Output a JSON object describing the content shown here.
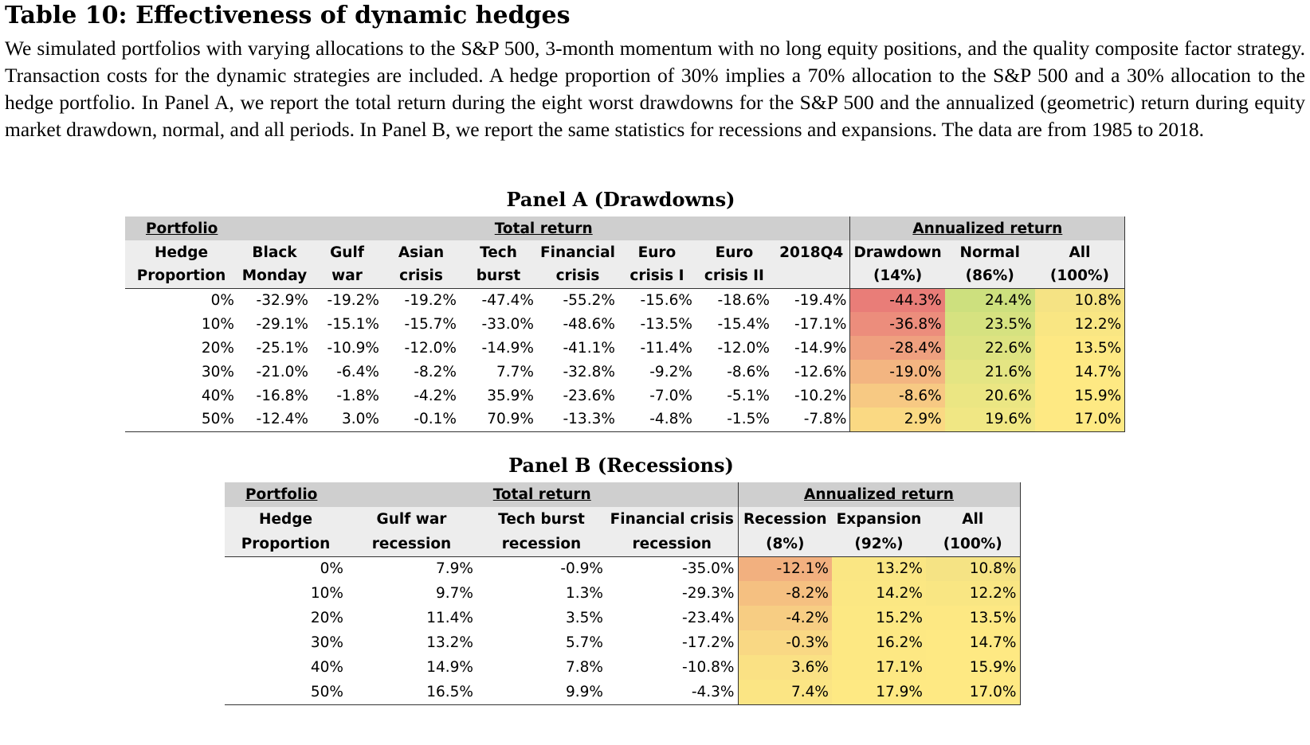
{
  "title": "Table 10: Effectiveness of dynamic hedges",
  "caption": "We simulated portfolios with varying allocations to the S&P 500, 3-month momentum with no long equity positions, and the quality composite factor strategy. Transaction costs for the dynamic strategies are included. A hedge proportion of 30% implies a 70% allocation to the S&P 500 and a 30% allocation to the hedge portfolio. In Panel A, we report the total return during the eight worst drawdowns for the S&P 500 and the annualized (geometric) return during equity market drawdown, normal, and all periods. In Panel B, we report the same statistics for recessions and expansions. The data are from 1985 to 2018.",
  "panel_a": {
    "title": "Panel A (Drawdowns)",
    "group_portfolio": "Portfolio",
    "group_total": "Total return",
    "group_annual": "Annualized return",
    "columns": [
      [
        "Hedge",
        "Proportion"
      ],
      [
        "Black",
        "Monday"
      ],
      [
        "Gulf",
        "war"
      ],
      [
        "Asian",
        "crisis"
      ],
      [
        "Tech",
        "burst"
      ],
      [
        "Financial",
        "crisis"
      ],
      [
        "Euro",
        "crisis I"
      ],
      [
        "Euro",
        "crisis II"
      ],
      [
        "2018Q4",
        ""
      ],
      [
        "Drawdown",
        "(14%)"
      ],
      [
        "Normal",
        "(86%)"
      ],
      [
        "All",
        "(100%)"
      ]
    ],
    "rows": [
      [
        "0%",
        "-32.9%",
        "-19.2%",
        "-19.2%",
        "-47.4%",
        "-55.2%",
        "-15.6%",
        "-18.6%",
        "-19.4%",
        "-44.3%",
        "24.4%",
        "10.8%"
      ],
      [
        "10%",
        "-29.1%",
        "-15.1%",
        "-15.7%",
        "-33.0%",
        "-48.6%",
        "-13.5%",
        "-15.4%",
        "-17.1%",
        "-36.8%",
        "23.5%",
        "12.2%"
      ],
      [
        "20%",
        "-25.1%",
        "-10.9%",
        "-12.0%",
        "-14.9%",
        "-41.1%",
        "-11.4%",
        "-12.0%",
        "-14.9%",
        "-28.4%",
        "22.6%",
        "13.5%"
      ],
      [
        "30%",
        "-21.0%",
        "-6.4%",
        "-8.2%",
        "7.7%",
        "-32.8%",
        "-9.2%",
        "-8.6%",
        "-12.6%",
        "-19.0%",
        "21.6%",
        "14.7%"
      ],
      [
        "40%",
        "-16.8%",
        "-1.8%",
        "-4.2%",
        "35.9%",
        "-23.6%",
        "-7.0%",
        "-5.1%",
        "-10.2%",
        "-8.6%",
        "20.6%",
        "15.9%"
      ],
      [
        "50%",
        "-12.4%",
        "3.0%",
        "-0.1%",
        "70.9%",
        "-13.3%",
        "-4.8%",
        "-1.5%",
        "-7.8%",
        "2.9%",
        "19.6%",
        "17.0%"
      ]
    ],
    "heat_colors": [
      [
        "#e97d78",
        "#cde07e",
        "#f5e384"
      ],
      [
        "#ec8d7c",
        "#d6e280",
        "#f9e683"
      ],
      [
        "#efa07f",
        "#dde381",
        "#fde883"
      ],
      [
        "#f3b581",
        "#e4e583",
        "#fee983"
      ],
      [
        "#f7c983",
        "#ebe683",
        "#fee983"
      ],
      [
        "#fad983",
        "#f0e784",
        "#fee983"
      ]
    ]
  },
  "panel_b": {
    "title": "Panel B (Recessions)",
    "group_portfolio": "Portfolio",
    "group_total": "Total return",
    "group_annual": "Annualized return",
    "columns": [
      [
        "Hedge",
        "Proportion"
      ],
      [
        "Gulf war",
        "recession"
      ],
      [
        "Tech burst",
        "recession"
      ],
      [
        "Financial crisis",
        "recession"
      ],
      [
        "Recession",
        "(8%)"
      ],
      [
        "Expansion",
        "(92%)"
      ],
      [
        "All",
        "(100%)"
      ]
    ],
    "rows": [
      [
        "0%",
        "7.9%",
        "-0.9%",
        "-35.0%",
        "-12.1%",
        "13.2%",
        "10.8%"
      ],
      [
        "10%",
        "9.7%",
        "1.3%",
        "-29.3%",
        "-8.2%",
        "14.2%",
        "12.2%"
      ],
      [
        "20%",
        "11.4%",
        "3.5%",
        "-23.4%",
        "-4.2%",
        "15.2%",
        "13.5%"
      ],
      [
        "30%",
        "13.2%",
        "5.7%",
        "-17.2%",
        "-0.3%",
        "16.2%",
        "14.7%"
      ],
      [
        "40%",
        "14.9%",
        "7.8%",
        "-10.8%",
        "3.6%",
        "17.1%",
        "15.9%"
      ],
      [
        "50%",
        "16.5%",
        "9.9%",
        "-4.3%",
        "7.4%",
        "17.9%",
        "17.0%"
      ]
    ],
    "heat_colors": [
      [
        "#f2b07f",
        "#fae683",
        "#f5e384"
      ],
      [
        "#f5c081",
        "#fbe783",
        "#f9e683"
      ],
      [
        "#f7cd83",
        "#fce883",
        "#fde883"
      ],
      [
        "#f9d884",
        "#fde883",
        "#fee983"
      ],
      [
        "#fae184",
        "#fde883",
        "#fee983"
      ],
      [
        "#fbe584",
        "#fee983",
        "#fee983"
      ]
    ]
  }
}
